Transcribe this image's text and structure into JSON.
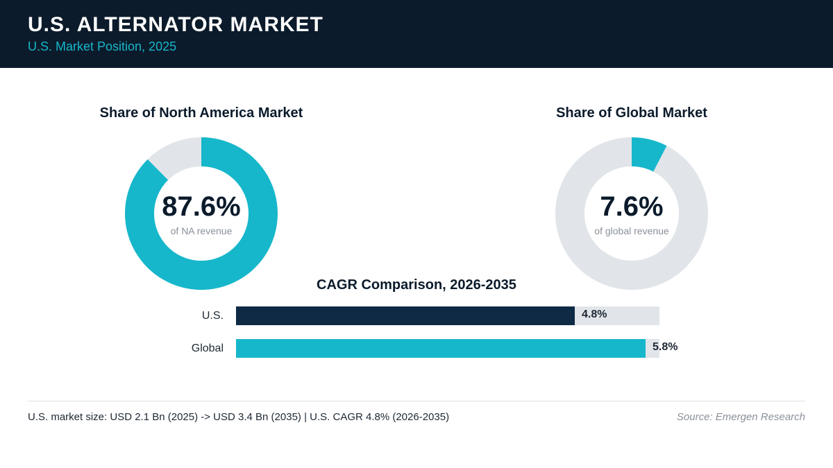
{
  "header": {
    "title": "U.S. ALTERNATOR MARKET",
    "subtitle": "U.S. Market Position, 2025"
  },
  "colors": {
    "header_bg": "#0b1b2b",
    "accent_teal": "#17b7cb",
    "dark_navy": "#0e2a45",
    "track_gray": "#e1e5e9"
  },
  "chart_data": [
    {
      "type": "pie",
      "title": "Share of North America Market",
      "value_label": "87.6%",
      "caption": "of NA revenue",
      "values": [
        87.6,
        12.4
      ],
      "colors": [
        "#17b7cb",
        "#e1e5e9"
      ]
    },
    {
      "type": "pie",
      "title": "Share of Global Market",
      "value_label": "7.6%",
      "caption": "of global revenue",
      "values": [
        7.6,
        92.4
      ],
      "colors": [
        "#17b7cb",
        "#e1e5e9"
      ]
    },
    {
      "type": "bar",
      "title": "CAGR Comparison, 2026-2035",
      "categories": [
        "U.S.",
        "Global"
      ],
      "values": [
        4.8,
        5.8
      ],
      "value_labels": [
        "4.8%",
        "5.8%"
      ],
      "colors": [
        "#0e2a45",
        "#17b7cb"
      ],
      "xlim": [
        0,
        6.0
      ],
      "orientation": "horizontal"
    }
  ],
  "footer": {
    "note": "U.S. market size: USD 2.1 Bn (2025) -> USD 3.4 Bn (2035)  |  U.S. CAGR 4.8% (2026-2035)",
    "source": "Source: Emergen Research"
  }
}
